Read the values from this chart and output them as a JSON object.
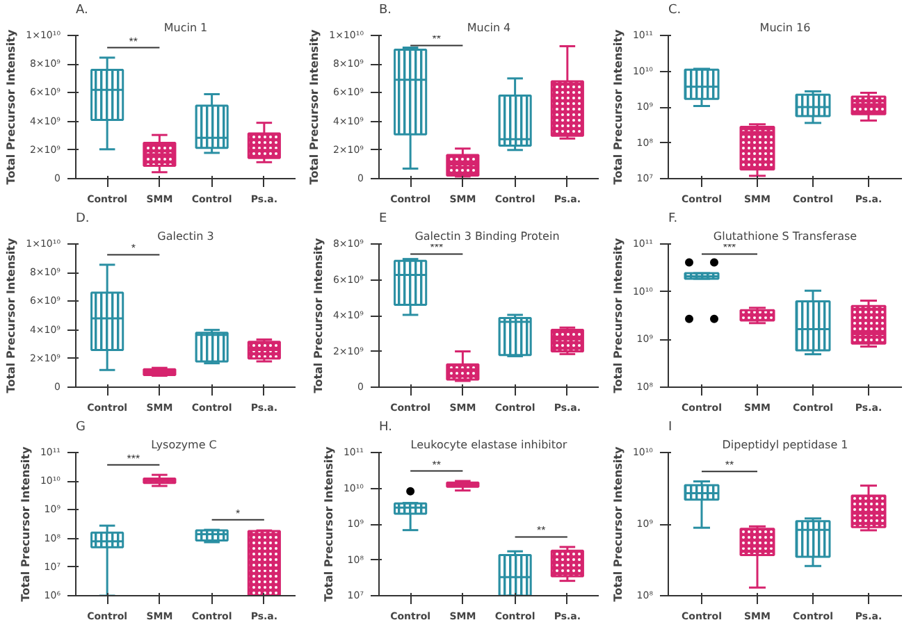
{
  "chart_data": [
    {
      "type": "box",
      "title": "Mucin 1",
      "ylabel": "Total Precursor Intensity",
      "categories": [
        "Control",
        "SMM",
        "Control",
        "Ps.a."
      ],
      "colors": [
        "#2a8fa3",
        "#d6246e",
        "#2a8fa3",
        "#d6246e"
      ],
      "boxes": [
        {
          "low": 2050000000.0,
          "q1": 4100000000.0,
          "median": 6200000000.0,
          "q3": 7600000000.0,
          "high": 8450000000.0
        },
        {
          "low": 450000000.0,
          "q1": 900000000.0,
          "median": 1700000000.0,
          "q3": 2500000000.0,
          "high": 3050000000.0
        },
        {
          "low": 1800000000.0,
          "q1": 2150000000.0,
          "median": 2850000000.0,
          "q3": 5100000000.0,
          "high": 5900000000.0
        },
        {
          "low": 1150000000.0,
          "q1": 1450000000.0,
          "median": 2000000000.0,
          "q3": 3150000000.0,
          "high": 3900000000.0
        }
      ],
      "ylim": [
        0,
        10000000000.0
      ],
      "yticks": [
        0,
        {
          "value": 2000000000.0,
          "label": "2×10⁹"
        },
        {
          "value": 4000000000.0,
          "label": "4×10⁹"
        },
        {
          "value": 6000000000.0,
          "label": "6×10⁹"
        },
        {
          "value": 8000000000.0,
          "label": "8×10⁹"
        },
        {
          "value": 10000000000.0,
          "label": "1×10¹⁰"
        }
      ],
      "annotations": [
        "A.",
        "**"
      ]
    },
    {
      "type": "box",
      "title": "Mucin 4",
      "ylabel": "Total Precursor Intensity",
      "categories": [
        "Control",
        "SMM",
        "Control",
        "Ps.a."
      ],
      "colors": [
        "#2a8fa3",
        "#d6246e",
        "#2a8fa3",
        "#d6246e"
      ],
      "boxes": [
        {
          "low": 700000000.0,
          "q1": 3100000000.0,
          "median": 6900000000.0,
          "q3": 9000000000.0,
          "high": 9150000000.0
        },
        {
          "low": 150000000.0,
          "q1": 220000000.0,
          "median": 1000000000.0,
          "q3": 1650000000.0,
          "high": 2100000000.0
        },
        {
          "low": 2000000000.0,
          "q1": 2300000000.0,
          "median": 2750000000.0,
          "q3": 5800000000.0,
          "high": 7000000000.0
        },
        {
          "low": 2800000000.0,
          "q1": 3000000000.0,
          "median": 3900000000.0,
          "q3": 6800000000.0,
          "high": 9250000000.0
        }
      ],
      "ylim": [
        0,
        10000000000.0
      ],
      "yticks": [
        0,
        {
          "value": 2000000000.0,
          "label": "2×10⁹"
        },
        {
          "value": 4000000000.0,
          "label": "4×10⁹"
        },
        {
          "value": 6000000000.0,
          "label": "6×10⁹"
        },
        {
          "value": 8000000000.0,
          "label": "8×10⁹"
        },
        {
          "value": 10000000000.0,
          "label": "1×10¹⁰"
        }
      ],
      "annotations": [
        "B.",
        "**"
      ]
    },
    {
      "type": "box",
      "title": "Mucin 16",
      "ylabel": "Total Precursor Intensity",
      "categories": [
        "Control",
        "SMM",
        "Control",
        "Ps.a."
      ],
      "colors": [
        "#2a8fa3",
        "#d6246e",
        "#2a8fa3",
        "#d6246e"
      ],
      "boxes": [
        {
          "low": 1070000000.0,
          "q1": 1700000000.0,
          "median": 3700000000.0,
          "q3": 11000000000.0,
          "high": 11700000000.0
        },
        {
          "low": 12000000.0,
          "q1": 18000000.0,
          "median": 200000000.0,
          "q3": 280000000.0,
          "high": 330000000.0
        },
        {
          "low": 360000000.0,
          "q1": 560000000.0,
          "median": 1000000000.0,
          "q3": 2200000000.0,
          "high": 2750000000.0
        },
        {
          "low": 420000000.0,
          "q1": 630000000.0,
          "median": 1200000000.0,
          "q3": 1950000000.0,
          "high": 2500000000.0
        }
      ],
      "log": true,
      "ylim": [
        10000000.0,
        100000000000.0
      ],
      "yticks": [
        {
          "value": 10000000.0,
          "label": "10⁷"
        },
        {
          "value": 100000000.0,
          "label": "10⁸"
        },
        {
          "value": 1000000000.0,
          "label": "10⁹"
        },
        {
          "value": 10000000000.0,
          "label": "10¹⁰"
        },
        {
          "value": 100000000000.0,
          "label": "10¹¹"
        }
      ],
      "annotations": [
        "C."
      ]
    },
    {
      "type": "box",
      "title": "Galectin 3",
      "ylabel": "Total Precursor Intensity",
      "categories": [
        "Control",
        "SMM",
        "Control",
        "Ps.a."
      ],
      "colors": [
        "#2a8fa3",
        "#d6246e",
        "#2a8fa3",
        "#d6246e"
      ],
      "boxes": [
        {
          "low": 1200000000.0,
          "q1": 2600000000.0,
          "median": 4800000000.0,
          "q3": 6600000000.0,
          "high": 8550000000.0
        },
        {
          "low": 800000000.0,
          "q1": 850000000.0,
          "median": 1000000000.0,
          "q3": 1250000000.0,
          "high": 1350000000.0
        },
        {
          "low": 1670000000.0,
          "q1": 1800000000.0,
          "median": 3650000000.0,
          "q3": 3800000000.0,
          "high": 4000000000.0
        },
        {
          "low": 1800000000.0,
          "q1": 2000000000.0,
          "median": 2600000000.0,
          "q3": 3170000000.0,
          "high": 3330000000.0
        }
      ],
      "ylim": [
        0,
        10000000000.0
      ],
      "yticks": [
        0,
        {
          "value": 2000000000.0,
          "label": "2×10⁹"
        },
        {
          "value": 4000000000.0,
          "label": "4×10⁹"
        },
        {
          "value": 6000000000.0,
          "label": "6×10⁹"
        },
        {
          "value": 8000000000.0,
          "label": "8×10⁹"
        },
        {
          "value": 10000000000.0,
          "label": "1×10¹⁰"
        }
      ],
      "annotations": [
        "D.",
        "*"
      ]
    },
    {
      "type": "box",
      "title": "Galectin 3 Binding  Protein",
      "ylabel": "Total Precursor Intensity",
      "categories": [
        "Control",
        "SMM",
        "Control",
        "Ps.a."
      ],
      "colors": [
        "#2a8fa3",
        "#d6246e",
        "#2a8fa3",
        "#d6246e"
      ],
      "boxes": [
        {
          "low": 4040000000.0,
          "q1": 4600000000.0,
          "median": 6270000000.0,
          "q3": 7060000000.0,
          "high": 7160000000.0
        },
        {
          "low": 350000000.0,
          "q1": 430000000.0,
          "median": 1000000000.0,
          "q3": 1270000000.0,
          "high": 2000000000.0
        },
        {
          "low": 1730000000.0,
          "q1": 1800000000.0,
          "median": 3650000000.0,
          "q3": 3860000000.0,
          "high": 4040000000.0
        },
        {
          "low": 1850000000.0,
          "q1": 2000000000.0,
          "median": 2670000000.0,
          "q3": 3200000000.0,
          "high": 3330000000.0
        }
      ],
      "ylim": [
        0,
        8000000000.0
      ],
      "yticks": [
        0,
        {
          "value": 2000000000.0,
          "label": "2×10⁹"
        },
        {
          "value": 4000000000.0,
          "label": "4×10⁹"
        },
        {
          "value": 6000000000.0,
          "label": "6×10⁹"
        },
        {
          "value": 8000000000.0,
          "label": "8×10⁹"
        }
      ],
      "annotations": [
        "E",
        "***"
      ]
    },
    {
      "type": "box",
      "title": "Glutathione S Transferase",
      "ylabel": "Total Precursor Intensity",
      "categories": [
        "Control",
        "SMM",
        "Control",
        "Ps.a."
      ],
      "colors": [
        "#2a8fa3",
        "#d6246e",
        "#2a8fa3",
        "#d6246e"
      ],
      "boxes": [
        {
          "low": 18700000000.0,
          "q1": 18700000000.0,
          "median": 21000000000.0,
          "q3": 24400000000.0,
          "high": 24400000000.0,
          "outliers": [
            41000000000.0,
            41000000000.0,
            2700000000.0,
            2700000000.0
          ]
        },
        {
          "low": 2200000000.0,
          "q1": 2500000000.0,
          "median": 3200000000.0,
          "q3": 4100000000.0,
          "high": 4600000000.0
        },
        {
          "low": 490000000.0,
          "q1": 590000000.0,
          "median": 1650000000.0,
          "q3": 6300000000.0,
          "high": 10500000000.0
        },
        {
          "low": 710000000.0,
          "q1": 820000000.0,
          "median": 1300000000.0,
          "q3": 5000000000.0,
          "high": 6500000000.0
        }
      ],
      "log": true,
      "ylim": [
        100000000.0,
        100000000000.0
      ],
      "yticks": [
        {
          "value": 100000000.0,
          "label": "10⁸"
        },
        {
          "value": 1000000000.0,
          "label": "10⁹"
        },
        {
          "value": 10000000000.0,
          "label": "10¹⁰"
        },
        {
          "value": 100000000000.0,
          "label": "10¹¹"
        }
      ],
      "annotations": [
        "F.",
        "***"
      ]
    },
    {
      "type": "box",
      "title": "Lysozyme  C",
      "ylabel": "Total Precursor Intensity",
      "categories": [
        "Control",
        "SMM",
        "Control",
        "Ps.a."
      ],
      "colors": [
        "#2a8fa3",
        "#d6246e",
        "#2a8fa3",
        "#d6246e"
      ],
      "boxes": [
        {
          "low": 1000000.0,
          "q1": 49000000.0,
          "median": 79000000.0,
          "q3": 160000000.0,
          "high": 280000000.0
        },
        {
          "low": 6800000000.0,
          "q1": 8700000000.0,
          "median": 10000000000.0,
          "q3": 12300000000.0,
          "high": 16600000000.0
        },
        {
          "low": 74000000.0,
          "q1": 85000000.0,
          "median": 140000000.0,
          "q3": 190000000.0,
          "high": 200000000.0
        },
        {
          "low": 1000000.0,
          "q1": 1000000.0,
          "median": 8700000.0,
          "q3": 180000000.0,
          "high": 190000000.0
        }
      ],
      "log": true,
      "ylim": [
        1000000.0,
        100000000000.0
      ],
      "yticks": [
        {
          "value": 1000000.0,
          "label": "10⁶"
        },
        {
          "value": 10000000.0,
          "label": "10⁷"
        },
        {
          "value": 100000000.0,
          "label": "10⁸"
        },
        {
          "value": 1000000000.0,
          "label": "10⁹"
        },
        {
          "value": 10000000000.0,
          "label": "10¹⁰"
        },
        {
          "value": 100000000000.0,
          "label": "10¹¹"
        }
      ],
      "annotations": [
        "G",
        "***",
        "*"
      ]
    },
    {
      "type": "box",
      "title": "Leukocyte elastase inhibitor",
      "ylabel": "Total Precursor Intensity",
      "categories": [
        "Control",
        "SMM",
        "Control",
        "Ps.a."
      ],
      "colors": [
        "#2a8fa3",
        "#d6246e",
        "#2a8fa3",
        "#d6246e"
      ],
      "boxes": [
        {
          "low": 680000000.0,
          "q1": 1960000000.0,
          "median": 2900000000.0,
          "q3": 3800000000.0,
          "high": 3900000000.0,
          "outliers": [
            8300000000.0
          ]
        },
        {
          "low": 8700000000.0,
          "q1": 11000000000.0,
          "median": 12500000000.0,
          "q3": 14500000000.0,
          "high": 16000000000.0
        },
        {
          "low": 10000000.0,
          "q1": 10000000.0,
          "median": 33000000.0,
          "q3": 136000000.0,
          "high": 174000000.0
        },
        {
          "low": 26000000.0,
          "q1": 35000000.0,
          "median": 83000000.0,
          "q3": 180000000.0,
          "high": 230000000.0
        }
      ],
      "log": true,
      "ylim": [
        10000000.0,
        100000000000.0
      ],
      "yticks": [
        {
          "value": 10000000.0,
          "label": "10⁷"
        },
        {
          "value": 100000000.0,
          "label": "10⁸"
        },
        {
          "value": 1000000000.0,
          "label": "10⁹"
        },
        {
          "value": 10000000000.0,
          "label": "10¹⁰"
        },
        {
          "value": 100000000000.0,
          "label": "10¹¹"
        }
      ],
      "annotations": [
        "H.",
        "**",
        "**"
      ]
    },
    {
      "type": "box",
      "title": "Dipeptidyl peptidase 1",
      "ylabel": "Total Precursor Intensity",
      "categories": [
        "Control",
        "SMM",
        "Control",
        "Ps.a."
      ],
      "colors": [
        "#2a8fa3",
        "#d6246e",
        "#2a8fa3",
        "#d6246e"
      ],
      "boxes": [
        {
          "low": 890000000.0,
          "q1": 2200000000.0,
          "median": 2700000000.0,
          "q3": 3500000000.0,
          "high": 3950000000.0
        },
        {
          "low": 130000000.0,
          "q1": 370000000.0,
          "median": 490000000.0,
          "q3": 860000000.0,
          "high": 930000000.0
        },
        {
          "low": 260000000.0,
          "q1": 350000000.0,
          "median": 830000000.0,
          "q3": 1100000000.0,
          "high": 1200000000.0
        },
        {
          "low": 820000000.0,
          "q1": 910000000.0,
          "median": 1400000000.0,
          "q3": 2500000000.0,
          "high": 3450000000.0
        }
      ],
      "log": true,
      "ylim": [
        100000000.0,
        10000000000.0
      ],
      "yticks": [
        {
          "value": 100000000.0,
          "label": "10⁸"
        },
        {
          "value": 1000000000.0,
          "label": "10⁹"
        },
        {
          "value": 10000000000.0,
          "label": "10¹⁰"
        }
      ],
      "annotations": [
        "I",
        "**"
      ]
    }
  ]
}
